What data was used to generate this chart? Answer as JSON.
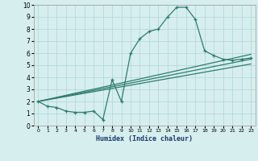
{
  "xlabel": "Humidex (Indice chaleur)",
  "ylabel": "",
  "bg_color": "#d6eeee",
  "grid_color": "#b8d8d8",
  "line_color": "#2e7d6e",
  "xlim": [
    -0.5,
    23.5
  ],
  "ylim": [
    0,
    10
  ],
  "xticks": [
    0,
    1,
    2,
    3,
    4,
    5,
    6,
    7,
    8,
    9,
    10,
    11,
    12,
    13,
    14,
    15,
    16,
    17,
    18,
    19,
    20,
    21,
    22,
    23
  ],
  "yticks": [
    0,
    1,
    2,
    3,
    4,
    5,
    6,
    7,
    8,
    9,
    10
  ],
  "series1_x": [
    0,
    1,
    2,
    3,
    4,
    5,
    6,
    7,
    8,
    9,
    10,
    11,
    12,
    13,
    14,
    15,
    16,
    17,
    18,
    19,
    20,
    21,
    22,
    23
  ],
  "series1_y": [
    2.0,
    1.6,
    1.5,
    1.2,
    1.1,
    1.1,
    1.2,
    0.5,
    3.8,
    2.0,
    6.0,
    7.2,
    7.8,
    8.0,
    9.0,
    9.8,
    9.8,
    8.8,
    6.2,
    5.8,
    5.5,
    5.4,
    5.5,
    5.6
  ],
  "series2_x": [
    0,
    23
  ],
  "series2_y": [
    2.0,
    5.9
  ],
  "series3_x": [
    0,
    23
  ],
  "series3_y": [
    2.0,
    5.5
  ],
  "series4_x": [
    0,
    23
  ],
  "series4_y": [
    2.0,
    5.1
  ]
}
